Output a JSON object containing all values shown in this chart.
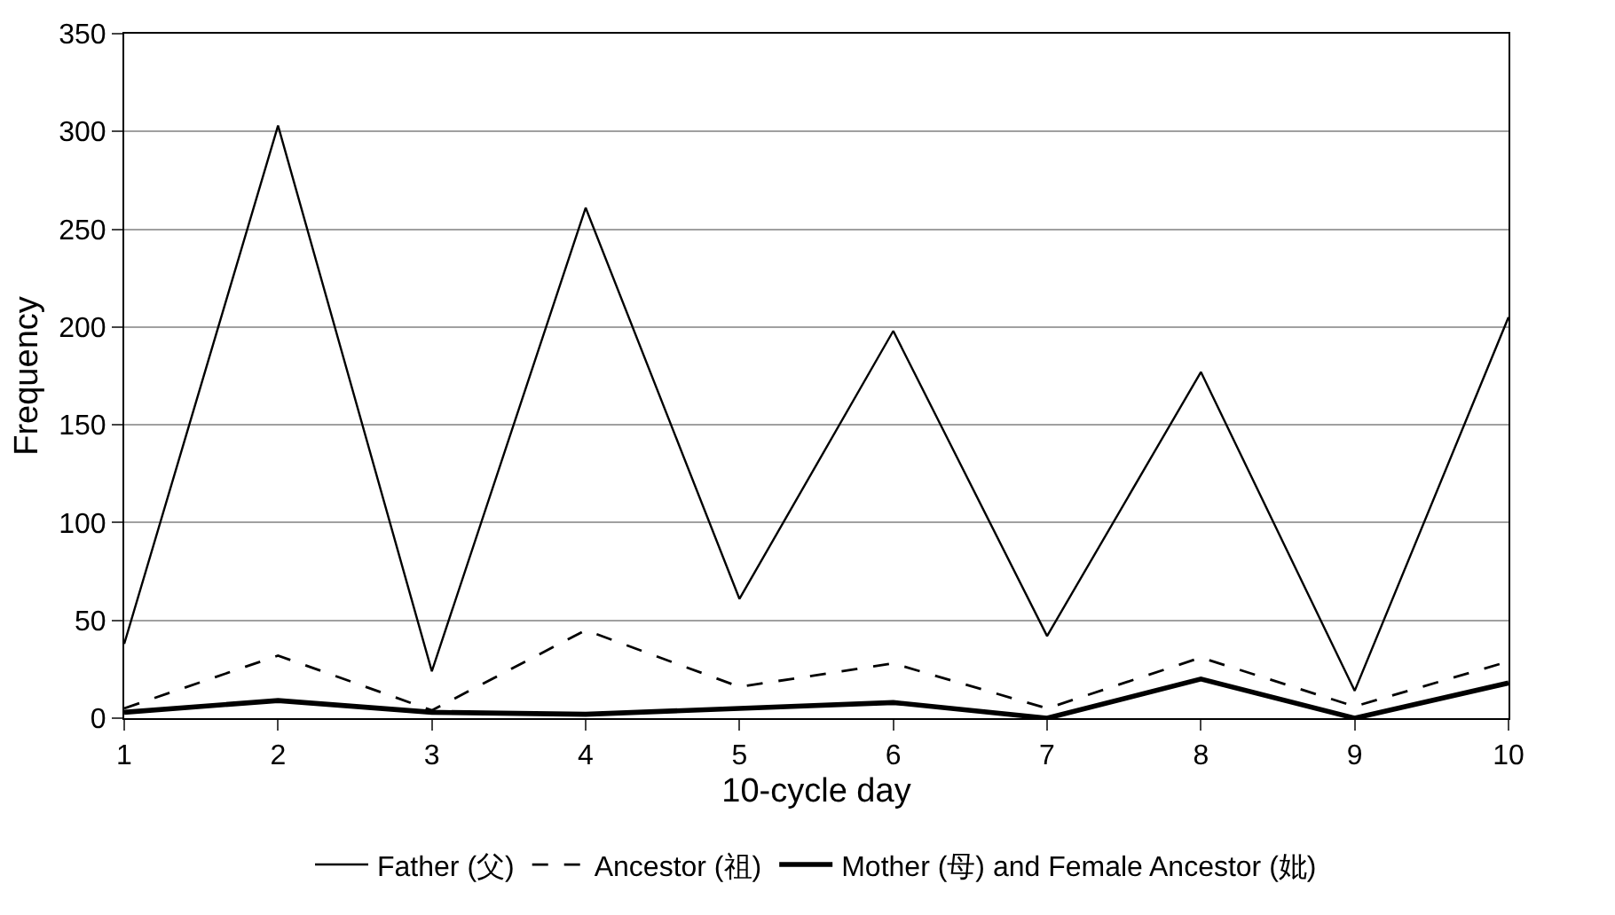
{
  "chart_data": {
    "type": "line",
    "xlabel": "10-cycle day",
    "ylabel": "Frequency",
    "x": [
      1,
      2,
      3,
      4,
      5,
      6,
      7,
      8,
      9,
      10
    ],
    "series": [
      {
        "name": "Father (父)",
        "color": "#000000",
        "line_style": "solid",
        "values": [
          38,
          303,
          24,
          261,
          61,
          198,
          42,
          177,
          14,
          205
        ]
      },
      {
        "name": "Ancestor (祖)",
        "color": "#000000",
        "line_style": "dashed",
        "values": [
          5,
          32,
          4,
          45,
          16,
          28,
          5,
          31,
          6,
          29
        ]
      },
      {
        "name": "Mother (母) and Female Ancestor (妣)",
        "color": "#000000",
        "line_style": "solid",
        "values": [
          3,
          9,
          3,
          2,
          5,
          8,
          0,
          20,
          0,
          18
        ]
      }
    ],
    "xlim": [
      1,
      10
    ],
    "xticks": [
      1,
      2,
      3,
      4,
      5,
      6,
      7,
      8,
      9,
      10
    ],
    "ylim": [
      0,
      350
    ],
    "yticks": [
      0,
      50,
      100,
      150,
      200,
      250,
      300,
      350
    ],
    "grid": "y",
    "legend": "bottom",
    "marker": "none"
  }
}
